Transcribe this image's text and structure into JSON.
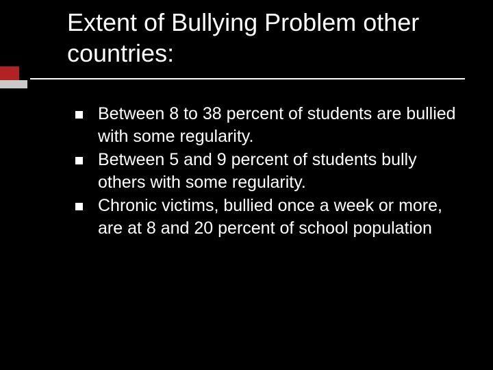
{
  "slide": {
    "background_color": "#000000",
    "text_color": "#ffffff",
    "accent_color_primary": "#b22222",
    "accent_color_secondary": "#c9c9c9",
    "title": {
      "text": "Extent of Bullying Problem other countries:",
      "fontsize": 36,
      "fontweight": 400
    },
    "rule_color": "#ffffff",
    "bullets": [
      {
        "text": "Between 8 to 38 percent of students are bullied with some regularity."
      },
      {
        "text": "Between 5 and 9 percent of students bully others with some regularity."
      },
      {
        "text": "Chronic victims, bullied once a week or more, are at 8 and 20 percent of school population"
      }
    ],
    "bullet_fontsize": 25,
    "bullet_marker_color": "#ffffff",
    "bullet_marker_size": 11
  }
}
